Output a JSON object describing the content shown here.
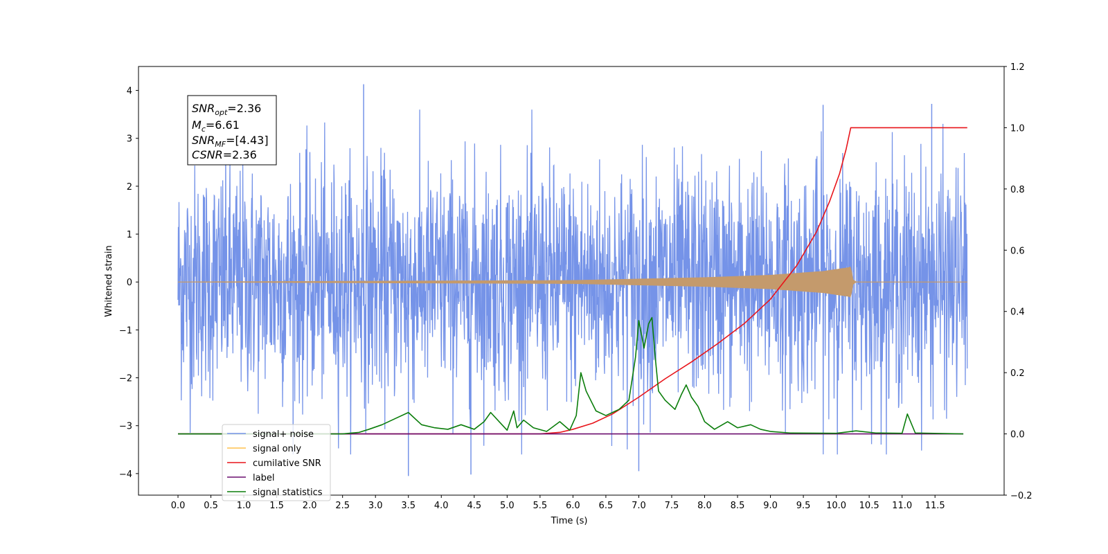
{
  "chart_data": {
    "type": "line",
    "xlabel": "Time (s)",
    "ylabel": "Whitened strain",
    "xlim": [
      -0.6,
      12.55
    ],
    "ylim": [
      -4.45,
      4.5
    ],
    "y2lim": [
      -0.2,
      1.2
    ],
    "x_ticks": [
      "0.0",
      "0.5",
      "1.0",
      "1.5",
      "2.0",
      "2.5",
      "3.0",
      "3.5",
      "4.0",
      "4.5",
      "5.0",
      "5.5",
      "6.0",
      "6.5",
      "7.0",
      "7.5",
      "8.0",
      "8.5",
      "9.0",
      "9.5",
      "10.0",
      "10.5",
      "11.0",
      "11.5"
    ],
    "y_ticks": [
      "4",
      "3",
      "2",
      "1",
      "0",
      "−1",
      "−2",
      "−3",
      "−4"
    ],
    "y2_ticks": [
      "1.2",
      "1.0",
      "0.8",
      "0.6",
      "0.4",
      "0.2",
      "0.0",
      "−0.2"
    ],
    "grid": false,
    "legend_placement": "lower-left",
    "annotation": {
      "snr_opt": {
        "main": "SNR",
        "sub": "opt",
        "value": "=2.36"
      },
      "mc": {
        "main": "M",
        "sub": "c",
        "value": "=6.61"
      },
      "snr_mf": {
        "main": "SNR",
        "sub": "MF",
        "value": "=[4.43]"
      },
      "csnr": {
        "main": "CSNR",
        "sub": "",
        "value": "=2.36"
      }
    },
    "series": [
      {
        "name": "signal+ noise",
        "axis": "left",
        "color": "#7593e8",
        "kind": "noise",
        "x_range": [
          0.0,
          11.99
        ],
        "typical_amplitude": 1.2,
        "peak_max": 4.13,
        "peak_min": -4.02,
        "notable_peaks": [
          [
            2.82,
            4.13
          ],
          [
            3.5,
            -4.05
          ],
          [
            4.45,
            -4.02
          ],
          [
            7.0,
            -3.95
          ],
          [
            11.45,
            3.72
          ],
          [
            9.8,
            3.7
          ]
        ]
      },
      {
        "name": "signal only",
        "axis": "left",
        "color": "#c49a6c",
        "kind": "chirp",
        "x_range": [
          0.0,
          11.99
        ],
        "merger_time": 10.22,
        "envelope": [
          [
            0.0,
            0.0
          ],
          [
            6.0,
            0.03
          ],
          [
            8.0,
            0.09
          ],
          [
            9.0,
            0.14
          ],
          [
            9.8,
            0.22
          ],
          [
            10.2,
            0.3
          ],
          [
            10.22,
            0.32
          ],
          [
            10.25,
            0.05
          ],
          [
            10.3,
            0.0
          ],
          [
            11.99,
            0.0
          ]
        ]
      },
      {
        "name": "cumilative SNR",
        "axis": "right",
        "color": "#e8141a",
        "x": [
          0.0,
          5.0,
          5.5,
          5.8,
          6.0,
          6.3,
          6.6,
          7.0,
          7.4,
          7.8,
          8.2,
          8.6,
          9.0,
          9.4,
          9.7,
          9.9,
          10.05,
          10.15,
          10.22,
          10.25,
          11.99
        ],
        "y": [
          0.0,
          0.0,
          0.0,
          0.005,
          0.015,
          0.035,
          0.065,
          0.12,
          0.18,
          0.235,
          0.295,
          0.36,
          0.44,
          0.55,
          0.66,
          0.76,
          0.85,
          0.93,
          1.0,
          1.0,
          1.0
        ]
      },
      {
        "name": "label",
        "axis": "right",
        "color": "#6a0d6e",
        "x": [
          0.0,
          11.93
        ],
        "y": [
          0.0,
          0.0
        ]
      },
      {
        "name": "signal statistics",
        "axis": "right",
        "color": "#0a7d0a",
        "x": [
          0.0,
          2.5,
          2.75,
          2.9,
          3.1,
          3.3,
          3.5,
          3.7,
          3.9,
          4.1,
          4.3,
          4.5,
          4.65,
          4.75,
          4.9,
          5.0,
          5.1,
          5.15,
          5.25,
          5.4,
          5.6,
          5.8,
          5.95,
          6.05,
          6.12,
          6.2,
          6.35,
          6.5,
          6.7,
          6.85,
          6.95,
          7.0,
          7.08,
          7.15,
          7.2,
          7.25,
          7.3,
          7.4,
          7.55,
          7.65,
          7.72,
          7.8,
          7.9,
          8.0,
          8.15,
          8.35,
          8.5,
          8.7,
          8.85,
          9.0,
          9.3,
          10.0,
          10.3,
          10.6,
          11.0,
          11.08,
          11.2,
          11.93
        ],
        "y": [
          0.0,
          0.0,
          0.005,
          0.015,
          0.03,
          0.05,
          0.07,
          0.03,
          0.02,
          0.015,
          0.03,
          0.015,
          0.04,
          0.07,
          0.035,
          0.012,
          0.075,
          0.02,
          0.045,
          0.02,
          0.008,
          0.04,
          0.012,
          0.06,
          0.2,
          0.14,
          0.075,
          0.06,
          0.08,
          0.11,
          0.25,
          0.37,
          0.28,
          0.36,
          0.38,
          0.25,
          0.14,
          0.11,
          0.08,
          0.13,
          0.16,
          0.12,
          0.09,
          0.04,
          0.015,
          0.04,
          0.02,
          0.03,
          0.015,
          0.008,
          0.003,
          0.002,
          0.01,
          0.003,
          0.002,
          0.065,
          0.003,
          0.0
        ]
      }
    ]
  }
}
